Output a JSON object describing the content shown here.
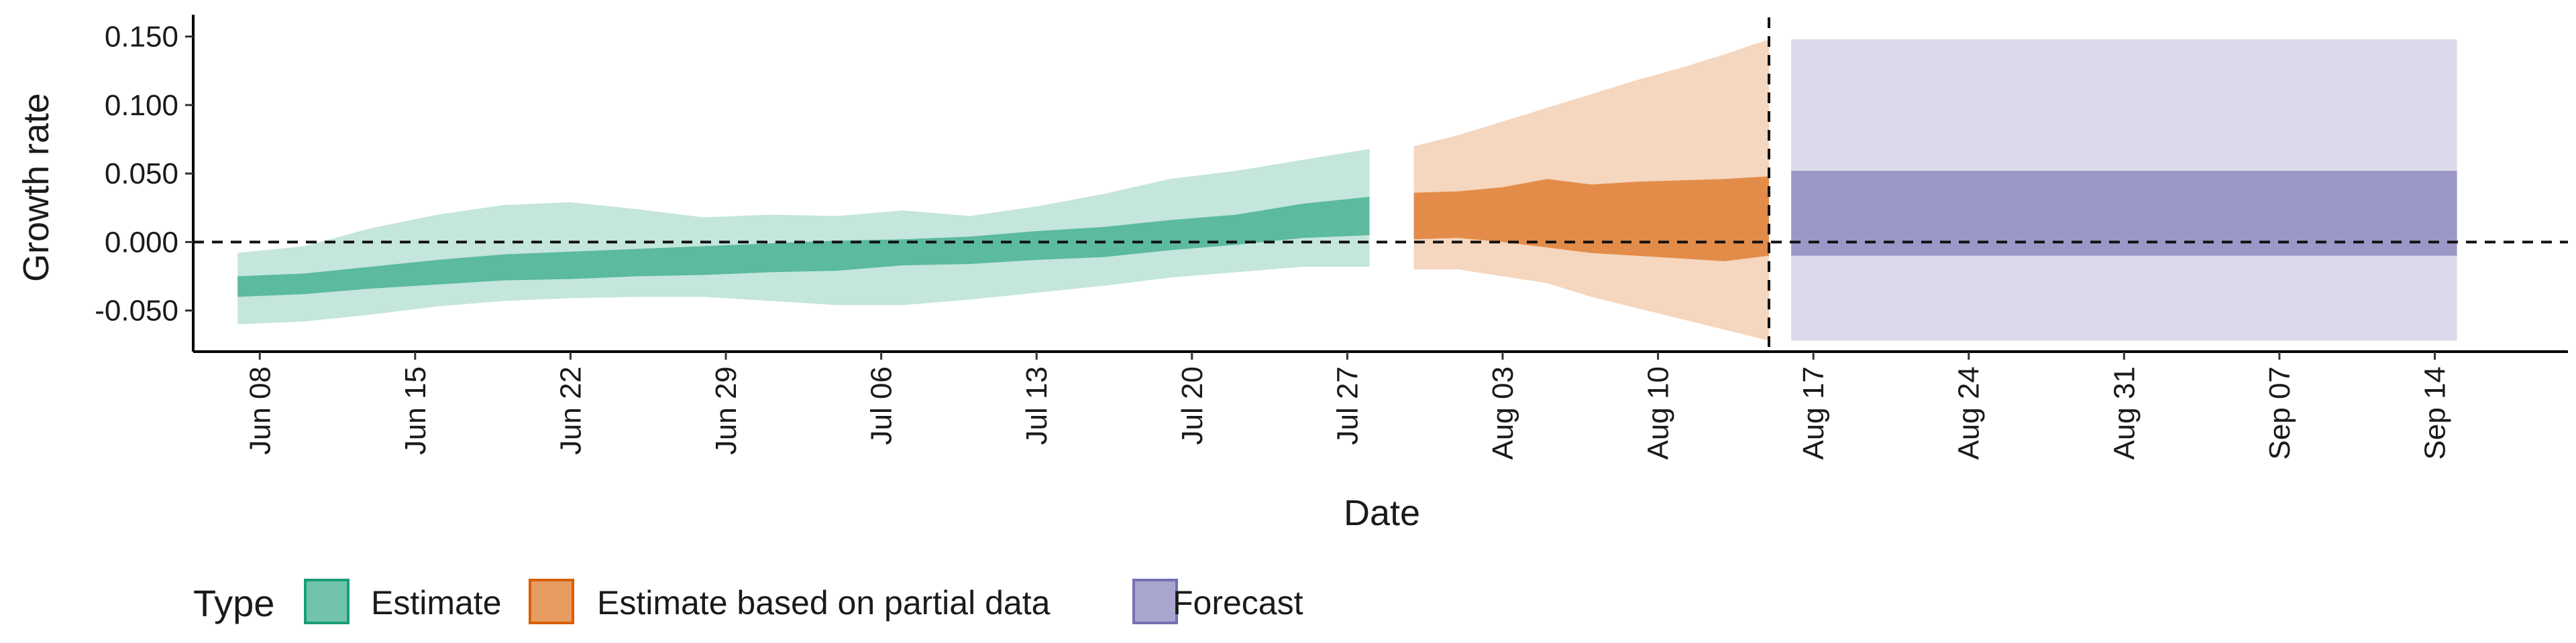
{
  "chart_data": {
    "type": "area",
    "title": "",
    "xlabel": "Date",
    "ylabel": "Growth rate",
    "x_date_range": [
      "2020-06-05",
      "2020-09-20"
    ],
    "xlim": [
      "2020-06-05",
      "2020-09-20"
    ],
    "ylim": [
      -0.08,
      0.162
    ],
    "y_ticks": [
      -0.05,
      0.0,
      0.05,
      0.1,
      0.15
    ],
    "y_tick_labels": [
      "-0.050",
      "0.000",
      "0.050",
      "0.100",
      "0.150"
    ],
    "x_ticks": [
      "2020-06-08",
      "2020-06-15",
      "2020-06-22",
      "2020-06-29",
      "2020-07-06",
      "2020-07-13",
      "2020-07-20",
      "2020-07-27",
      "2020-08-03",
      "2020-08-10",
      "2020-08-17",
      "2020-08-24",
      "2020-08-31",
      "2020-09-07",
      "2020-09-14"
    ],
    "x_tick_labels": [
      "Jun 08",
      "Jun 15",
      "Jun 22",
      "Jun 29",
      "Jul 06",
      "Jul 13",
      "Jul 20",
      "Jul 27",
      "Aug 03",
      "Aug 10",
      "Aug 17",
      "Aug 24",
      "Aug 31",
      "Sep 07",
      "Sep 14"
    ],
    "reference_lines": [
      {
        "orientation": "horizontal",
        "value": 0.0,
        "style": "dashed"
      },
      {
        "orientation": "vertical",
        "value": "2020-08-15",
        "style": "dashed"
      }
    ],
    "grid": false,
    "legend": {
      "title": "Type",
      "placement": "bottom-left",
      "entries": [
        {
          "label": "Estimate",
          "color": "#1b9e77"
        },
        {
          "label": "Estimate based on partial data",
          "color": "#d95f02"
        },
        {
          "label": "Forecast",
          "color": "#7570b3"
        }
      ]
    },
    "series": [
      {
        "name": "Estimate",
        "color": "#1b9e77",
        "x": [
          "2020-06-07",
          "2020-06-10",
          "2020-06-13",
          "2020-06-16",
          "2020-06-19",
          "2020-06-22",
          "2020-06-25",
          "2020-06-28",
          "2020-07-01",
          "2020-07-04",
          "2020-07-07",
          "2020-07-10",
          "2020-07-13",
          "2020-07-16",
          "2020-07-19",
          "2020-07-22",
          "2020-07-25",
          "2020-07-28"
        ],
        "inner_low": [
          -0.04,
          -0.038,
          -0.034,
          -0.031,
          -0.028,
          -0.027,
          -0.025,
          -0.024,
          -0.022,
          -0.021,
          -0.017,
          -0.016,
          -0.013,
          -0.011,
          -0.006,
          -0.002,
          0.003,
          0.005
        ],
        "inner_high": [
          -0.025,
          -0.023,
          -0.018,
          -0.013,
          -0.009,
          -0.007,
          -0.005,
          -0.003,
          -0.001,
          0.001,
          0.002,
          0.004,
          0.008,
          0.011,
          0.016,
          0.02,
          0.028,
          0.033
        ],
        "outer_low": [
          -0.06,
          -0.058,
          -0.053,
          -0.047,
          -0.043,
          -0.041,
          -0.04,
          -0.04,
          -0.043,
          -0.046,
          -0.046,
          -0.042,
          -0.037,
          -0.032,
          -0.026,
          -0.022,
          -0.018,
          -0.018
        ],
        "outer_high": [
          -0.008,
          -0.003,
          0.01,
          0.02,
          0.027,
          0.029,
          0.024,
          0.018,
          0.02,
          0.019,
          0.023,
          0.019,
          0.026,
          0.035,
          0.046,
          0.052,
          0.06,
          0.068
        ]
      },
      {
        "name": "Estimate based on partial data",
        "color": "#d95f02",
        "x": [
          "2020-07-30",
          "2020-08-01",
          "2020-08-03",
          "2020-08-05",
          "2020-08-07",
          "2020-08-09",
          "2020-08-11",
          "2020-08-13",
          "2020-08-15"
        ],
        "inner_low": [
          0.002,
          0.003,
          0.0,
          -0.004,
          -0.008,
          -0.01,
          -0.012,
          -0.014,
          -0.01
        ],
        "inner_high": [
          0.036,
          0.037,
          0.04,
          0.046,
          0.042,
          0.044,
          0.045,
          0.046,
          0.048
        ],
        "outer_low": [
          -0.02,
          -0.02,
          -0.025,
          -0.03,
          -0.04,
          -0.048,
          -0.056,
          -0.064,
          -0.072
        ],
        "outer_high": [
          0.07,
          0.078,
          0.088,
          0.098,
          0.108,
          0.118,
          0.127,
          0.137,
          0.148
        ]
      },
      {
        "name": "Forecast",
        "color": "#7570b3",
        "x": [
          "2020-08-16",
          "2020-09-15"
        ],
        "inner_low": [
          -0.01,
          -0.01
        ],
        "inner_high": [
          0.052,
          0.052
        ],
        "outer_low": [
          -0.072,
          -0.072
        ],
        "outer_high": [
          0.148,
          0.148
        ]
      }
    ]
  }
}
